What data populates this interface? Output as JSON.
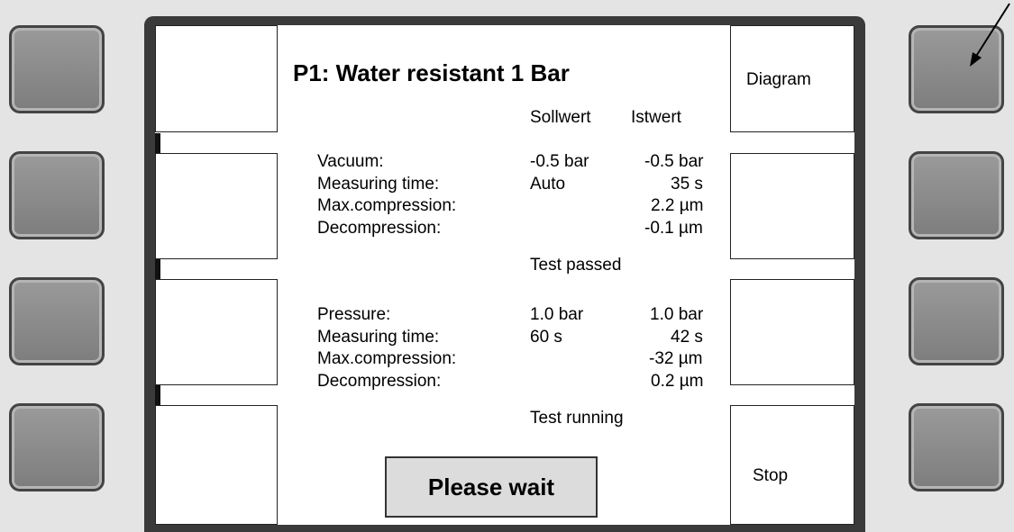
{
  "screen": {
    "title": "P1: Water resistant 1 Bar",
    "column_headers": [
      "Sollwert",
      "Istwert"
    ],
    "sections": [
      {
        "rows": [
          {
            "label": "Vacuum:",
            "setpoint": "-0.5 bar",
            "actual": "-0.5 bar"
          },
          {
            "label": "Measuring time:",
            "setpoint": "Auto",
            "actual": "35 s"
          },
          {
            "label": "Max.compression:",
            "actual": "2.2 µm"
          },
          {
            "label": "Decompression:",
            "actual": "-0.1 µm"
          }
        ],
        "status": "Test passed"
      },
      {
        "rows": [
          {
            "label": "Pressure:",
            "setpoint": "1.0 bar",
            "actual": "1.0 bar"
          },
          {
            "label": "Measuring time:",
            "setpoint": "60 s",
            "actual": "42 s"
          },
          {
            "label": "Max.compression:",
            "actual": "-32 µm"
          },
          {
            "label": "Decompression:",
            "actual": "0.2 µm"
          }
        ],
        "status": "Test running"
      }
    ],
    "softkeys": {
      "top_right": "Diagram",
      "bottom_right": "Stop"
    },
    "button": "Please wait"
  }
}
